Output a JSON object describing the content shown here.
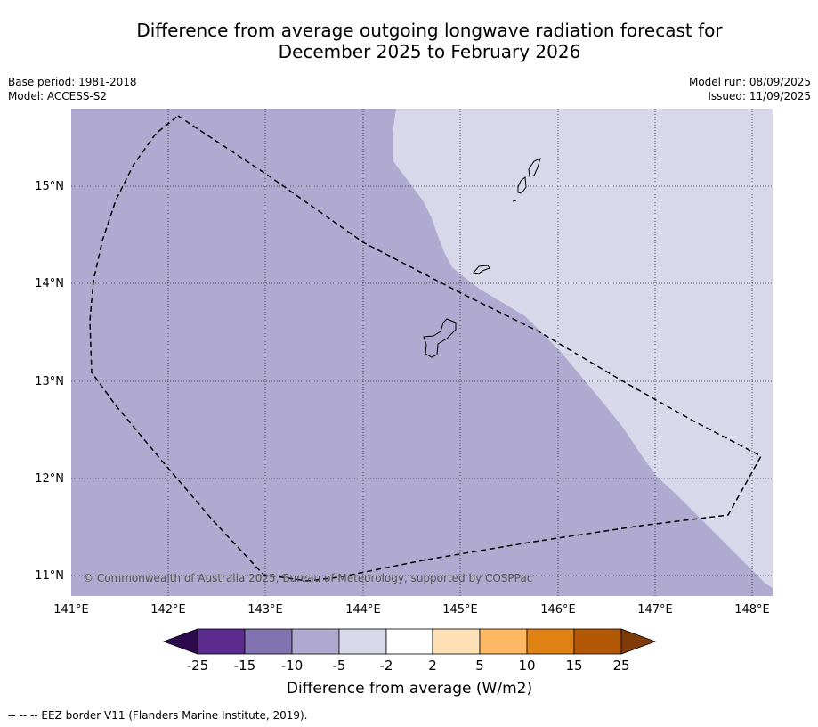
{
  "title_line1": "Difference from average outgoing longwave radiation forecast for",
  "title_line2": "December 2025 to February 2026",
  "base_period": "Base period: 1981-2018",
  "model": "Model: ACCESS-S2",
  "model_run": "Model run: 08/09/2025",
  "issued": "Issued: 11/09/2025",
  "copyright": "© Commonwealth of Australia 2025, Bureau of Meteorology, supported by COSPPac",
  "colorbar_label": "Difference from average (W/m2)",
  "footnote": "--  --  -- EEZ border V11 (Flanders Marine Institute, 2019).",
  "map": {
    "lon_ticks": [
      "141°E",
      "142°E",
      "143°E",
      "144°E",
      "145°E",
      "146°E",
      "147°E",
      "148°E"
    ],
    "lat_ticks": [
      "15°N",
      "14°N",
      "13°N",
      "12°N",
      "11°N"
    ],
    "extent": {
      "lon": [
        141,
        148.2
      ],
      "lat": [
        10.8,
        15.8
      ]
    },
    "gridlines": true
  },
  "colorbar": {
    "ticks": [
      "-25",
      "-15",
      "-10",
      "-5",
      "-2",
      "2",
      "5",
      "10",
      "15",
      "25"
    ],
    "colors": [
      "#2d0a4e",
      "#5a2a8c",
      "#8173b0",
      "#b0aad0",
      "#d8d8ea",
      "#ffffff",
      "#fde0b6",
      "#fdb863",
      "#e08213",
      "#b35806",
      "#7f3b08"
    ]
  },
  "legend_colors": {
    "band_-10_-5": "#b0aad0",
    "band_-5_-2": "#d8d8ea"
  }
}
